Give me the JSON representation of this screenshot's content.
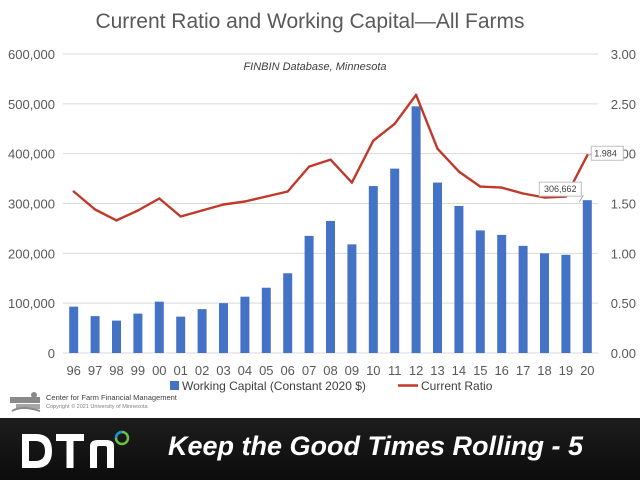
{
  "chart_data": {
    "type": "bar",
    "title": "Current Ratio and Working Capital—All Farms",
    "subtitle": "FINBIN Database, Minnesota",
    "categories": [
      "96",
      "97",
      "98",
      "99",
      "00",
      "01",
      "02",
      "03",
      "04",
      "05",
      "06",
      "07",
      "08",
      "09",
      "10",
      "11",
      "12",
      "13",
      "14",
      "15",
      "16",
      "17",
      "18",
      "19",
      "20"
    ],
    "series": [
      {
        "name": "Working Capital (Constant 2020 $)",
        "type": "bar",
        "axis": "left",
        "color": "#4472c4",
        "values": [
          93000,
          74000,
          65000,
          79000,
          103000,
          73000,
          88000,
          100000,
          113000,
          131000,
          160000,
          235000,
          265000,
          218000,
          335000,
          370000,
          495000,
          342000,
          295000,
          246000,
          237000,
          215000,
          200000,
          197000,
          306662
        ]
      },
      {
        "name": "Current Ratio",
        "type": "line",
        "axis": "right",
        "color": "#c0392b",
        "values": [
          1.62,
          1.44,
          1.33,
          1.43,
          1.55,
          1.37,
          1.43,
          1.49,
          1.52,
          1.57,
          1.62,
          1.87,
          1.94,
          1.71,
          2.13,
          2.3,
          2.59,
          2.05,
          1.82,
          1.67,
          1.66,
          1.6,
          1.56,
          1.57,
          1.984
        ]
      }
    ],
    "y_left": {
      "lim": [
        0,
        600000
      ],
      "ticks": [
        "0",
        "100,000",
        "200,000",
        "300,000",
        "400,000",
        "500,000",
        "600,000"
      ]
    },
    "y_right": {
      "lim": [
        0,
        3
      ],
      "ticks": [
        "0.00",
        "0.50",
        "1.00",
        "1.50",
        "2.00",
        "2.50",
        "3.00"
      ]
    },
    "data_labels": {
      "bar_last": "306,662",
      "line_last": "1.984"
    },
    "grid": true,
    "legend_position": "bottom"
  },
  "source": {
    "name": "Center for Farm Financial Management",
    "copyright": "Copyright © 2021 University of Minnesota"
  },
  "footer": {
    "brand": "DTN",
    "tagline": "Keep the Good Times Rolling - 5",
    "background": "#111111",
    "logo_color": "#ffffff",
    "accent_color": "#6dbe45"
  }
}
